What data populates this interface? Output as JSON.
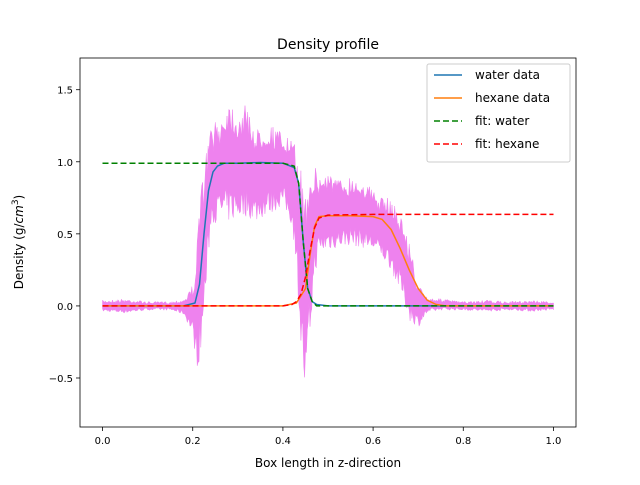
{
  "chart_data": {
    "type": "line",
    "title": "Density profile",
    "xlabel": "Box length in z-direction",
    "ylabel_prefix": "Density (g/",
    "ylabel_unit_base": "cm",
    "ylabel_unit_exp": "3",
    "ylabel_suffix": ")",
    "xlim": [
      -0.05,
      1.05
    ],
    "ylim": [
      -0.84,
      1.72
    ],
    "xticks": [
      0.0,
      0.2,
      0.4,
      0.6,
      0.8,
      1.0
    ],
    "xtick_labels": [
      "0.0",
      "0.2",
      "0.4",
      "0.6",
      "0.8",
      "1.0"
    ],
    "yticks": [
      -0.5,
      0.0,
      0.5,
      1.0,
      1.5
    ],
    "ytick_labels": [
      "−0.5",
      "0.0",
      "0.5",
      "1.0",
      "1.5"
    ],
    "grid": false,
    "legend_position": "top-right",
    "series": [
      {
        "name": "water data",
        "color": "#1f77b4",
        "style": "solid",
        "x": [
          0.0,
          0.1,
          0.18,
          0.205,
          0.215,
          0.225,
          0.235,
          0.245,
          0.255,
          0.27,
          0.3,
          0.35,
          0.4,
          0.425,
          0.435,
          0.445,
          0.455,
          0.465,
          0.475,
          0.5,
          0.6,
          0.7,
          1.0
        ],
        "y": [
          0.0,
          0.0,
          0.0,
          0.02,
          0.15,
          0.5,
          0.8,
          0.93,
          0.97,
          0.99,
          0.99,
          0.995,
          0.99,
          0.96,
          0.85,
          0.45,
          0.12,
          0.03,
          0.01,
          0.0,
          0.0,
          0.0,
          0.0
        ]
      },
      {
        "name": "hexane data",
        "color": "#ff7f0e",
        "style": "solid",
        "x": [
          0.0,
          0.2,
          0.4,
          0.43,
          0.45,
          0.46,
          0.47,
          0.48,
          0.5,
          0.55,
          0.6,
          0.62,
          0.64,
          0.66,
          0.68,
          0.7,
          0.72,
          0.74,
          0.76,
          0.8,
          1.0
        ],
        "y": [
          0.0,
          0.0,
          0.0,
          0.02,
          0.12,
          0.35,
          0.55,
          0.62,
          0.625,
          0.625,
          0.62,
          0.6,
          0.53,
          0.4,
          0.25,
          0.12,
          0.04,
          0.01,
          0.0,
          0.0,
          0.0
        ]
      },
      {
        "name": "fit: water",
        "color": "#008000",
        "style": "dashed",
        "x": [
          0.0,
          0.2,
          0.4,
          0.425,
          0.435,
          0.445,
          0.455,
          0.465,
          0.475,
          0.5,
          0.6,
          0.8,
          1.0
        ],
        "y": [
          0.99,
          0.99,
          0.99,
          0.97,
          0.85,
          0.45,
          0.12,
          0.03,
          0.0,
          0.0,
          0.0,
          0.0,
          0.0
        ]
      },
      {
        "name": "fit: hexane",
        "color": "#ff0000",
        "style": "dashed",
        "x": [
          0.0,
          0.2,
          0.4,
          0.42,
          0.43,
          0.44,
          0.45,
          0.46,
          0.47,
          0.48,
          0.5,
          0.6,
          0.8,
          1.0
        ],
        "y": [
          0.0,
          0.0,
          0.0,
          0.01,
          0.03,
          0.08,
          0.2,
          0.38,
          0.54,
          0.61,
          0.63,
          0.635,
          0.635,
          0.635
        ]
      }
    ],
    "uncertainty_band": {
      "color": "#ee82ee",
      "x": [
        0.0,
        0.05,
        0.1,
        0.15,
        0.18,
        0.2,
        0.21,
        0.22,
        0.24,
        0.26,
        0.28,
        0.3,
        0.32,
        0.34,
        0.36,
        0.38,
        0.4,
        0.42,
        0.43,
        0.44,
        0.45,
        0.46,
        0.47,
        0.48,
        0.5,
        0.52,
        0.55,
        0.58,
        0.6,
        0.62,
        0.64,
        0.66,
        0.68,
        0.7,
        0.72,
        0.75,
        0.8,
        0.85,
        0.9,
        0.95,
        1.0
      ],
      "upper": [
        0.04,
        0.05,
        0.03,
        0.03,
        0.05,
        0.15,
        0.45,
        0.9,
        1.25,
        1.3,
        1.45,
        1.35,
        1.4,
        1.22,
        1.28,
        1.25,
        1.2,
        1.15,
        1.1,
        0.95,
        0.85,
        1.08,
        0.98,
        0.9,
        0.95,
        0.88,
        0.9,
        0.88,
        0.8,
        0.75,
        0.75,
        0.65,
        0.45,
        0.15,
        0.06,
        0.05,
        0.03,
        0.04,
        0.03,
        0.04,
        0.03
      ],
      "lower": [
        -0.04,
        -0.05,
        -0.03,
        -0.03,
        -0.06,
        -0.2,
        -0.45,
        -0.3,
        0.55,
        0.6,
        0.58,
        0.6,
        0.62,
        0.58,
        0.62,
        0.65,
        0.7,
        0.55,
        0.3,
        -0.3,
        -0.7,
        -0.25,
        0.2,
        0.35,
        0.38,
        0.4,
        0.42,
        0.4,
        0.38,
        0.33,
        0.25,
        0.1,
        -0.1,
        -0.15,
        -0.05,
        -0.03,
        -0.03,
        -0.04,
        -0.03,
        -0.04,
        -0.03
      ]
    }
  }
}
